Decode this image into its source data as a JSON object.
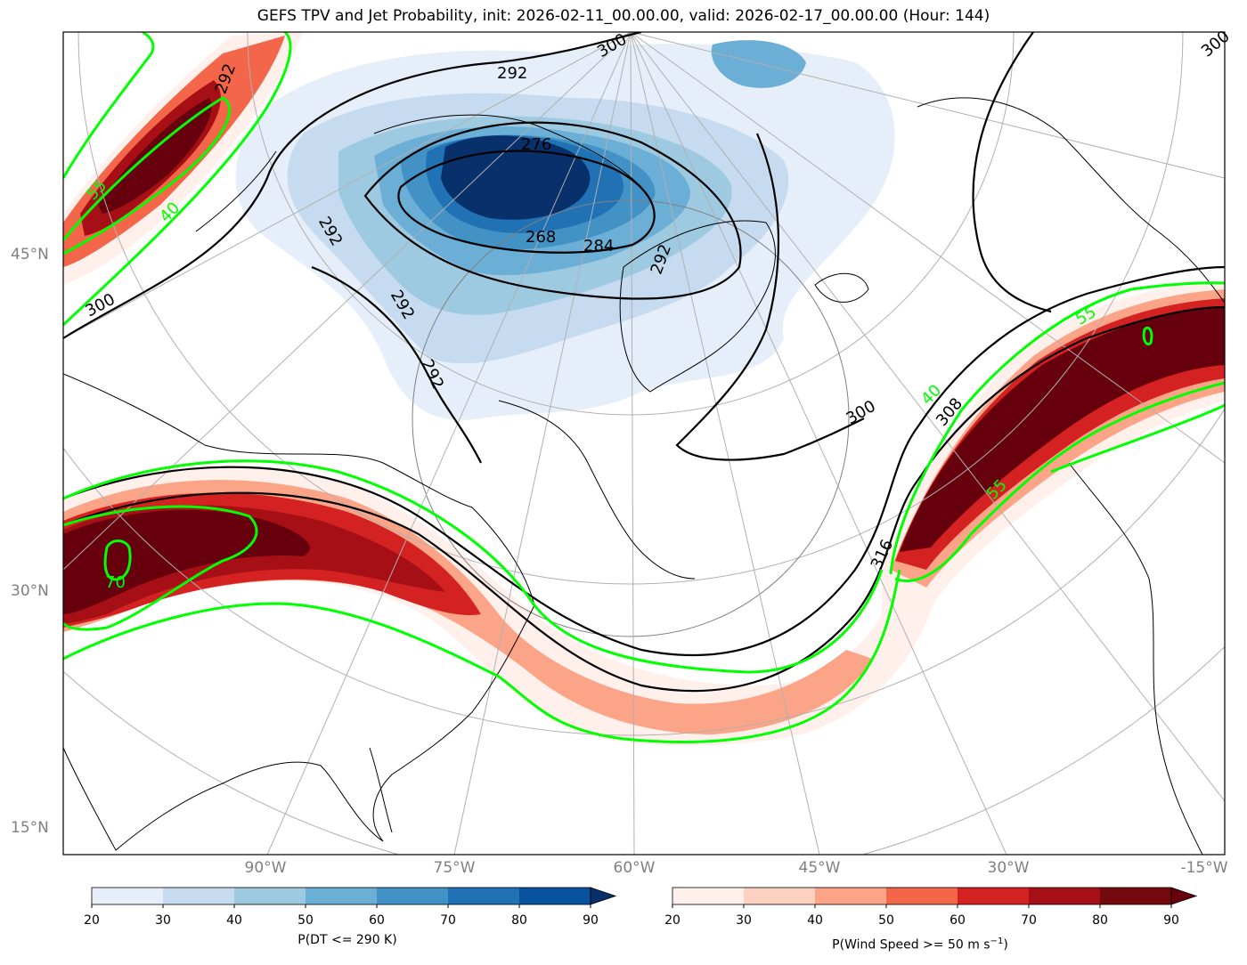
{
  "title": "GEFS TPV and Jet Probability, init: 2026-02-11_00.00.00, valid: 2026-02-17_00.00.00 (Hour: 144)",
  "lat_labels": [
    "45°N",
    "30°N",
    "15°N"
  ],
  "lon_labels": [
    "90°W",
    "75°W",
    "60°W",
    "45°W",
    "30°W",
    "-15°W"
  ],
  "contour_labels": {
    "theta": [
      "300",
      "292",
      "300",
      "292",
      "276",
      "268",
      "284",
      "292",
      "292",
      "292",
      "292",
      "300",
      "300",
      "308",
      "316"
    ],
    "jet": [
      "55",
      "40",
      "70",
      "40",
      "55",
      "55"
    ]
  },
  "colorbar_dt": {
    "label": "P(DT <= 290 K)",
    "ticks": [
      "20",
      "30",
      "40",
      "50",
      "60",
      "70",
      "80",
      "90"
    ],
    "colors": [
      "#e6eff9",
      "#c6dbef",
      "#9ecae1",
      "#6baed6",
      "#4292c6",
      "#2171b5",
      "#08519c"
    ],
    "extend_color": "#08306b"
  },
  "colorbar_wind": {
    "label_main": "P(Wind Speed >= 50 m s",
    "label_sup": "−1",
    "label_end": ")",
    "ticks": [
      "20",
      "30",
      "40",
      "50",
      "60",
      "70",
      "80",
      "90"
    ],
    "colors": [
      "#fff0ec",
      "#fdd1c0",
      "#fca487",
      "#f4664a",
      "#d42121",
      "#a50f15",
      "#750a0e"
    ],
    "extend_color": "#67000d"
  },
  "colors": {
    "jet_contour": "#00ff00",
    "theta_contour": "#000000",
    "grid": "#b0b0b0"
  }
}
